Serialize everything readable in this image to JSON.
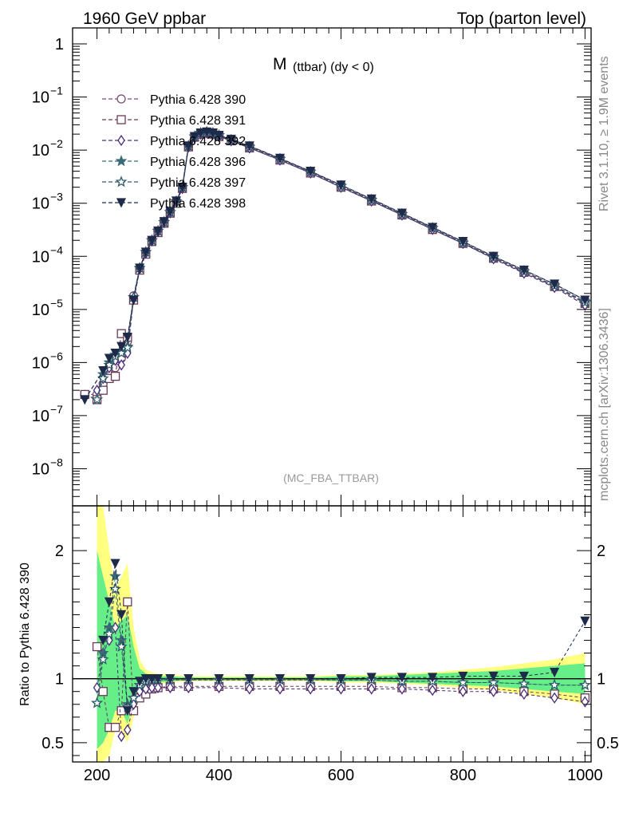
{
  "header": {
    "left": "1960 GeV ppbar",
    "right": "Top (parton level)"
  },
  "side_labels": {
    "rivet": "Rivet 3.1.10, ≥ 1.9M events",
    "mcplots": "mcplots.cern.ch [arXiv:1306.3436]"
  },
  "chart_data": [
    {
      "type": "line",
      "panel": "main",
      "title_main": "M",
      "title_sub": "(ttbar) (dy < 0)",
      "watermark": "(MC_FBA_TTBAR)",
      "xlabel": "",
      "ylabel": "",
      "xlim": [
        160,
        1010
      ],
      "ylog": true,
      "ylim": [
        2e-09,
        2
      ],
      "yticks": [
        {
          "value": 1,
          "label": "1",
          "exp": ""
        },
        {
          "value": 0.1,
          "label": "10",
          "exp": "−1"
        },
        {
          "value": 0.01,
          "label": "10",
          "exp": "−2"
        },
        {
          "value": 0.001,
          "label": "10",
          "exp": "−3"
        },
        {
          "value": 0.0001,
          "label": "10",
          "exp": "−4"
        },
        {
          "value": 1e-05,
          "label": "10",
          "exp": "−5"
        },
        {
          "value": 1e-06,
          "label": "10",
          "exp": "−6"
        },
        {
          "value": 1e-07,
          "label": "10",
          "exp": "−7"
        },
        {
          "value": 1e-08,
          "label": "10",
          "exp": "−8"
        }
      ],
      "legend_position": "top-left",
      "x": [
        180,
        200,
        210,
        220,
        230,
        240,
        250,
        260,
        270,
        280,
        290,
        300,
        310,
        320,
        330,
        340,
        350,
        360,
        370,
        380,
        390,
        400,
        420,
        450,
        500,
        550,
        600,
        650,
        700,
        750,
        800,
        850,
        900,
        950,
        1000
      ],
      "series": [
        {
          "name": "Pythia 6.428 390",
          "color": "#7b4a70",
          "marker": "circle-open",
          "values": [
            2.5e-07,
            2.5e-07,
            4e-07,
            6e-07,
            8e-07,
            1.2e-06,
            2.5e-06,
            1.8e-05,
            6e-05,
            0.00012,
            0.0002,
            0.0003,
            0.00045,
            0.0007,
            0.0011,
            0.002,
            0.012,
            0.018,
            0.021,
            0.022,
            0.021,
            0.019,
            0.016,
            0.012,
            0.007,
            0.004,
            0.0022,
            0.0012,
            0.00065,
            0.00035,
            0.00019,
            0.0001,
            5.5e-05,
            3e-05,
            1.5e-05
          ]
        },
        {
          "name": "Pythia 6.428 391",
          "color": "#6a3a55",
          "marker": "square-open",
          "values": [
            2.5e-07,
            2e-07,
            3e-07,
            5e-07,
            5.5e-07,
            3.5e-06,
            3e-06,
            1.5e-05,
            5.5e-05,
            0.00011,
            0.00019,
            0.00028,
            0.00042,
            0.00065,
            0.001,
            0.0019,
            0.0115,
            0.0175,
            0.02,
            0.021,
            0.02,
            0.018,
            0.015,
            0.011,
            0.0065,
            0.0037,
            0.002,
            0.0011,
            0.0006,
            0.00032,
            0.000175,
            9.2e-05,
            5e-05,
            2.7e-05,
            1.3e-05
          ]
        },
        {
          "name": "Pythia 6.428 392",
          "color": "#4a2a7a",
          "marker": "diamond-open",
          "values": [
            null,
            3e-07,
            5e-07,
            8e-07,
            1.1e-06,
            9e-07,
            1.5e-06,
            1.6e-05,
            5.8e-05,
            0.000115,
            0.000195,
            0.00029,
            0.00043,
            0.00066,
            0.00105,
            0.0019,
            0.0115,
            0.017,
            0.02,
            0.021,
            0.02,
            0.018,
            0.015,
            0.011,
            0.0065,
            0.0037,
            0.002,
            0.0011,
            0.0006,
            0.00032,
            0.000175,
            9e-05,
            4.8e-05,
            2.6e-05,
            1.2e-05
          ]
        },
        {
          "name": "Pythia 6.428 396",
          "color": "#3a6a78",
          "marker": "star-filled",
          "values": [
            null,
            2e-07,
            6e-07,
            1e-06,
            1.4e-06,
            1.6e-06,
            2e-06,
            1.7e-05,
            6e-05,
            0.00012,
            0.0002,
            0.0003,
            0.00044,
            0.00068,
            0.00108,
            0.002,
            0.012,
            0.018,
            0.021,
            0.022,
            0.021,
            0.019,
            0.0155,
            0.0115,
            0.0068,
            0.0039,
            0.0021,
            0.00115,
            0.00062,
            0.00034,
            0.00018,
            9.5e-05,
            5.2e-05,
            2.8e-05,
            1.4e-05
          ]
        },
        {
          "name": "Pythia 6.428 397",
          "color": "#2e5a6a",
          "marker": "star-open",
          "values": [
            null,
            2e-07,
            5e-07,
            9e-07,
            1.3e-06,
            1.5e-06,
            1.9e-06,
            1.7e-05,
            6e-05,
            0.00012,
            0.0002,
            0.0003,
            0.00044,
            0.00068,
            0.00108,
            0.002,
            0.012,
            0.018,
            0.021,
            0.022,
            0.021,
            0.019,
            0.0155,
            0.0115,
            0.0068,
            0.0039,
            0.0021,
            0.00115,
            0.00062,
            0.00034,
            0.00018,
            9.5e-05,
            5.2e-05,
            2.8e-05,
            1.35e-05
          ]
        },
        {
          "name": "Pythia 6.428 398",
          "color": "#1e2a4a",
          "marker": "triangle-down-filled",
          "values": [
            2e-07,
            null,
            7e-07,
            1.2e-06,
            1.5e-06,
            2e-06,
            3e-06,
            1.5e-05,
            6e-05,
            0.00012,
            0.0002,
            0.0003,
            0.00045,
            0.0007,
            0.0011,
            0.002,
            0.012,
            0.018,
            0.021,
            0.022,
            0.021,
            0.019,
            0.016,
            0.012,
            0.007,
            0.004,
            0.0022,
            0.0012,
            0.00065,
            0.00035,
            0.00019,
            0.0001,
            5.5e-05,
            3e-05,
            1.5e-05
          ]
        }
      ]
    },
    {
      "type": "line",
      "panel": "ratio",
      "ylabel": "Ratio to Pythia 6.428 390",
      "xlabel": "",
      "xlim": [
        160,
        1010
      ],
      "ylim": [
        0.35,
        2.35
      ],
      "xticks": [
        200,
        400,
        600,
        800,
        1000
      ],
      "yticks": [
        {
          "value": 0.5,
          "label": "0.5"
        },
        {
          "value": 1,
          "label": "1"
        },
        {
          "value": 2,
          "label": "2"
        }
      ],
      "x": [
        200,
        210,
        220,
        230,
        240,
        250,
        260,
        270,
        280,
        290,
        300,
        320,
        350,
        400,
        450,
        500,
        550,
        600,
        650,
        700,
        750,
        800,
        850,
        900,
        950,
        1000
      ],
      "band_yellow": {
        "lo": [
          0.35,
          0.35,
          0.4,
          0.6,
          0.6,
          0.5,
          0.7,
          0.85,
          0.93,
          0.95,
          0.96,
          0.97,
          0.98,
          0.98,
          0.98,
          0.98,
          0.98,
          0.97,
          0.97,
          0.96,
          0.95,
          0.93,
          0.91,
          0.88,
          0.85,
          0.8
        ],
        "hi": [
          2.35,
          2.35,
          2.0,
          1.7,
          1.8,
          1.9,
          1.4,
          1.15,
          1.07,
          1.05,
          1.04,
          1.03,
          1.02,
          1.02,
          1.02,
          1.02,
          1.02,
          1.03,
          1.03,
          1.04,
          1.05,
          1.07,
          1.09,
          1.12,
          1.15,
          1.2
        ]
      },
      "band_green": {
        "lo": [
          0.45,
          0.5,
          0.6,
          0.75,
          0.75,
          0.65,
          0.8,
          0.9,
          0.95,
          0.97,
          0.97,
          0.98,
          0.99,
          0.99,
          0.99,
          0.99,
          0.99,
          0.98,
          0.98,
          0.97,
          0.96,
          0.95,
          0.94,
          0.92,
          0.9,
          0.88
        ],
        "hi": [
          2.0,
          1.8,
          1.6,
          1.4,
          1.45,
          1.5,
          1.25,
          1.08,
          1.04,
          1.03,
          1.02,
          1.02,
          1.01,
          1.01,
          1.01,
          1.01,
          1.01,
          1.02,
          1.02,
          1.03,
          1.04,
          1.05,
          1.06,
          1.08,
          1.1,
          1.12
        ]
      },
      "series": [
        {
          "name": "Pythia 6.428 391",
          "color": "#6a3a55",
          "marker": "square-open",
          "values": [
            1.25,
            0.9,
            0.62,
            0.62,
            0.75,
            1.6,
            0.75,
            0.85,
            0.88,
            0.92,
            0.93,
            0.94,
            0.94,
            0.94,
            0.94,
            0.94,
            0.94,
            0.94,
            0.94,
            0.93,
            0.93,
            0.92,
            0.92,
            0.9,
            0.88,
            0.85
          ]
        },
        {
          "name": "Pythia 6.428 392",
          "color": "#4a2a7a",
          "marker": "diamond-open",
          "values": [
            0.93,
            1.2,
            1.3,
            1.4,
            0.55,
            0.6,
            0.8,
            0.9,
            0.92,
            0.93,
            0.93,
            0.93,
            0.93,
            0.93,
            0.92,
            0.92,
            0.92,
            0.92,
            0.92,
            0.92,
            0.91,
            0.9,
            0.9,
            0.88,
            0.85,
            0.82
          ]
        },
        {
          "name": "Pythia 6.428 396",
          "color": "#3a6a78",
          "marker": "star-filled",
          "values": [
            0.81,
            1.2,
            1.4,
            1.8,
            1.3,
            0.8,
            0.85,
            0.95,
            0.98,
            0.99,
            0.99,
            0.99,
            0.99,
            0.99,
            0.99,
            0.99,
            0.99,
            0.99,
            0.99,
            0.98,
            0.98,
            0.97,
            0.97,
            0.96,
            0.95,
            0.95
          ]
        },
        {
          "name": "Pythia 6.428 397",
          "color": "#2e5a6a",
          "marker": "star-open",
          "values": [
            0.81,
            1.15,
            1.35,
            1.7,
            1.25,
            0.78,
            0.85,
            0.95,
            0.98,
            0.99,
            0.99,
            0.99,
            0.99,
            0.99,
            0.99,
            0.99,
            0.99,
            0.99,
            0.99,
            0.98,
            0.98,
            0.97,
            0.97,
            0.96,
            0.95,
            0.95
          ]
        },
        {
          "name": "Pythia 6.428 398",
          "color": "#1e2a4a",
          "marker": "triangle-down-filled",
          "values": [
            null,
            1.3,
            1.6,
            1.9,
            1.5,
            0.75,
            0.9,
            0.98,
            1.0,
            1.0,
            1.0,
            1.0,
            1.0,
            1.0,
            1.0,
            1.0,
            1.0,
            1.0,
            1.01,
            1.01,
            1.01,
            1.02,
            1.02,
            1.02,
            1.05,
            1.45
          ]
        }
      ]
    }
  ]
}
